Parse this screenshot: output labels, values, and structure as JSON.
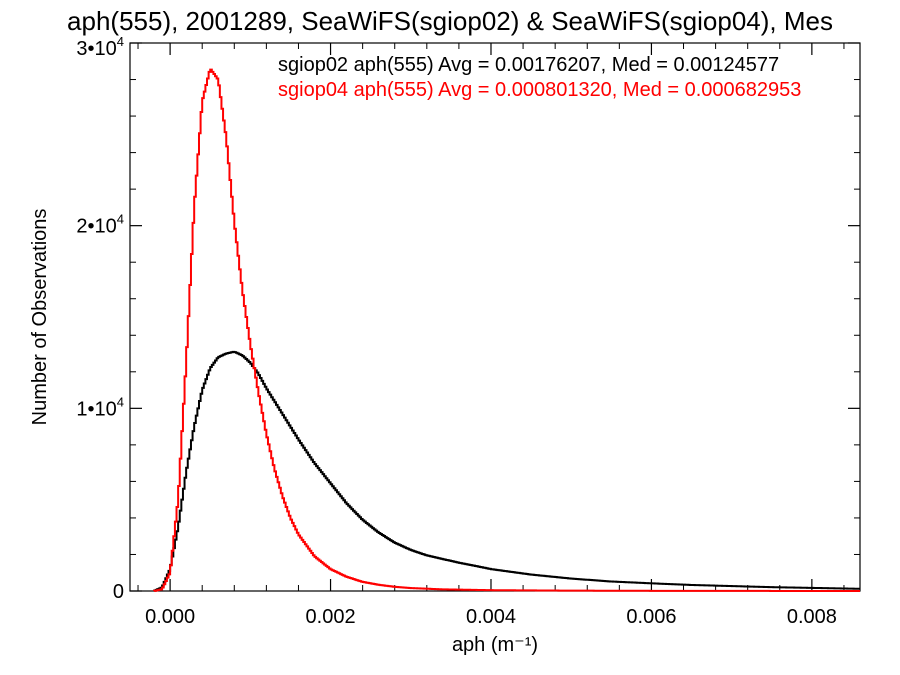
{
  "chart_data": {
    "type": "line",
    "title": "aph(555), 2001289, SeaWiFS(sgiop02) & SeaWiFS(sgiop04), Mes",
    "xlabel": "aph (m⁻¹)",
    "ylabel": "Number of Observations",
    "xlim": [
      -0.0005,
      0.0086
    ],
    "ylim": [
      0,
      30000
    ],
    "x_ticks": [
      {
        "value": 0.0,
        "label": "0.000"
      },
      {
        "value": 0.002,
        "label": "0.002"
      },
      {
        "value": 0.004,
        "label": "0.004"
      },
      {
        "value": 0.006,
        "label": "0.006"
      },
      {
        "value": 0.008,
        "label": "0.008"
      }
    ],
    "y_ticks": [
      {
        "value": 0,
        "label": "0",
        "exp": ""
      },
      {
        "value": 10000,
        "label": "1•10",
        "exp": "4"
      },
      {
        "value": 20000,
        "label": "2•10",
        "exp": "4"
      },
      {
        "value": 30000,
        "label": "3•10",
        "exp": "4"
      }
    ],
    "grid": false,
    "legend_placement": "top-right",
    "series": [
      {
        "name": "sgiop02 aph(555) Avg = 0.00176207, Med = 0.00124577",
        "color": "#000000",
        "x": [
          -0.0002,
          -0.0001,
          0.0,
          0.0001,
          0.0002,
          0.0003,
          0.0004,
          0.0005,
          0.0006,
          0.0007,
          0.0008,
          0.0009,
          0.001,
          0.0011,
          0.0012,
          0.0014,
          0.0016,
          0.0018,
          0.002,
          0.0022,
          0.0024,
          0.0026,
          0.0028,
          0.003,
          0.0032,
          0.0034,
          0.0036,
          0.0038,
          0.004,
          0.0045,
          0.005,
          0.0055,
          0.006,
          0.0065,
          0.007,
          0.0075,
          0.008,
          0.0086
        ],
        "values": [
          0,
          200,
          1200,
          3500,
          6500,
          9000,
          11000,
          12200,
          12800,
          13000,
          13100,
          12900,
          12500,
          11900,
          11100,
          9700,
          8300,
          7000,
          5900,
          4800,
          3900,
          3200,
          2650,
          2250,
          1950,
          1750,
          1550,
          1380,
          1200,
          900,
          680,
          520,
          420,
          330,
          270,
          210,
          170,
          120
        ]
      },
      {
        "name": "sgiop04 aph(555) Avg = 0.000801320, Med = 0.000682953",
        "color": "#ff0000",
        "x": [
          -0.0002,
          -0.0001,
          0.0,
          0.0001,
          0.0002,
          0.0003,
          0.0004,
          0.0005,
          0.0006,
          0.0007,
          0.0008,
          0.0009,
          0.001,
          0.0011,
          0.0012,
          0.0013,
          0.0014,
          0.0015,
          0.0016,
          0.0018,
          0.002,
          0.0022,
          0.0024,
          0.0026,
          0.0028,
          0.003,
          0.0034,
          0.004,
          0.005,
          0.006,
          0.007,
          0.008,
          0.0086
        ],
        "values": [
          0,
          100,
          1000,
          5000,
          12500,
          21000,
          26800,
          28600,
          28000,
          24800,
          20200,
          16500,
          13500,
          10900,
          8600,
          6700,
          5200,
          4000,
          3100,
          1900,
          1200,
          780,
          500,
          340,
          230,
          160,
          90,
          45,
          20,
          10,
          5,
          2,
          0
        ]
      }
    ]
  }
}
